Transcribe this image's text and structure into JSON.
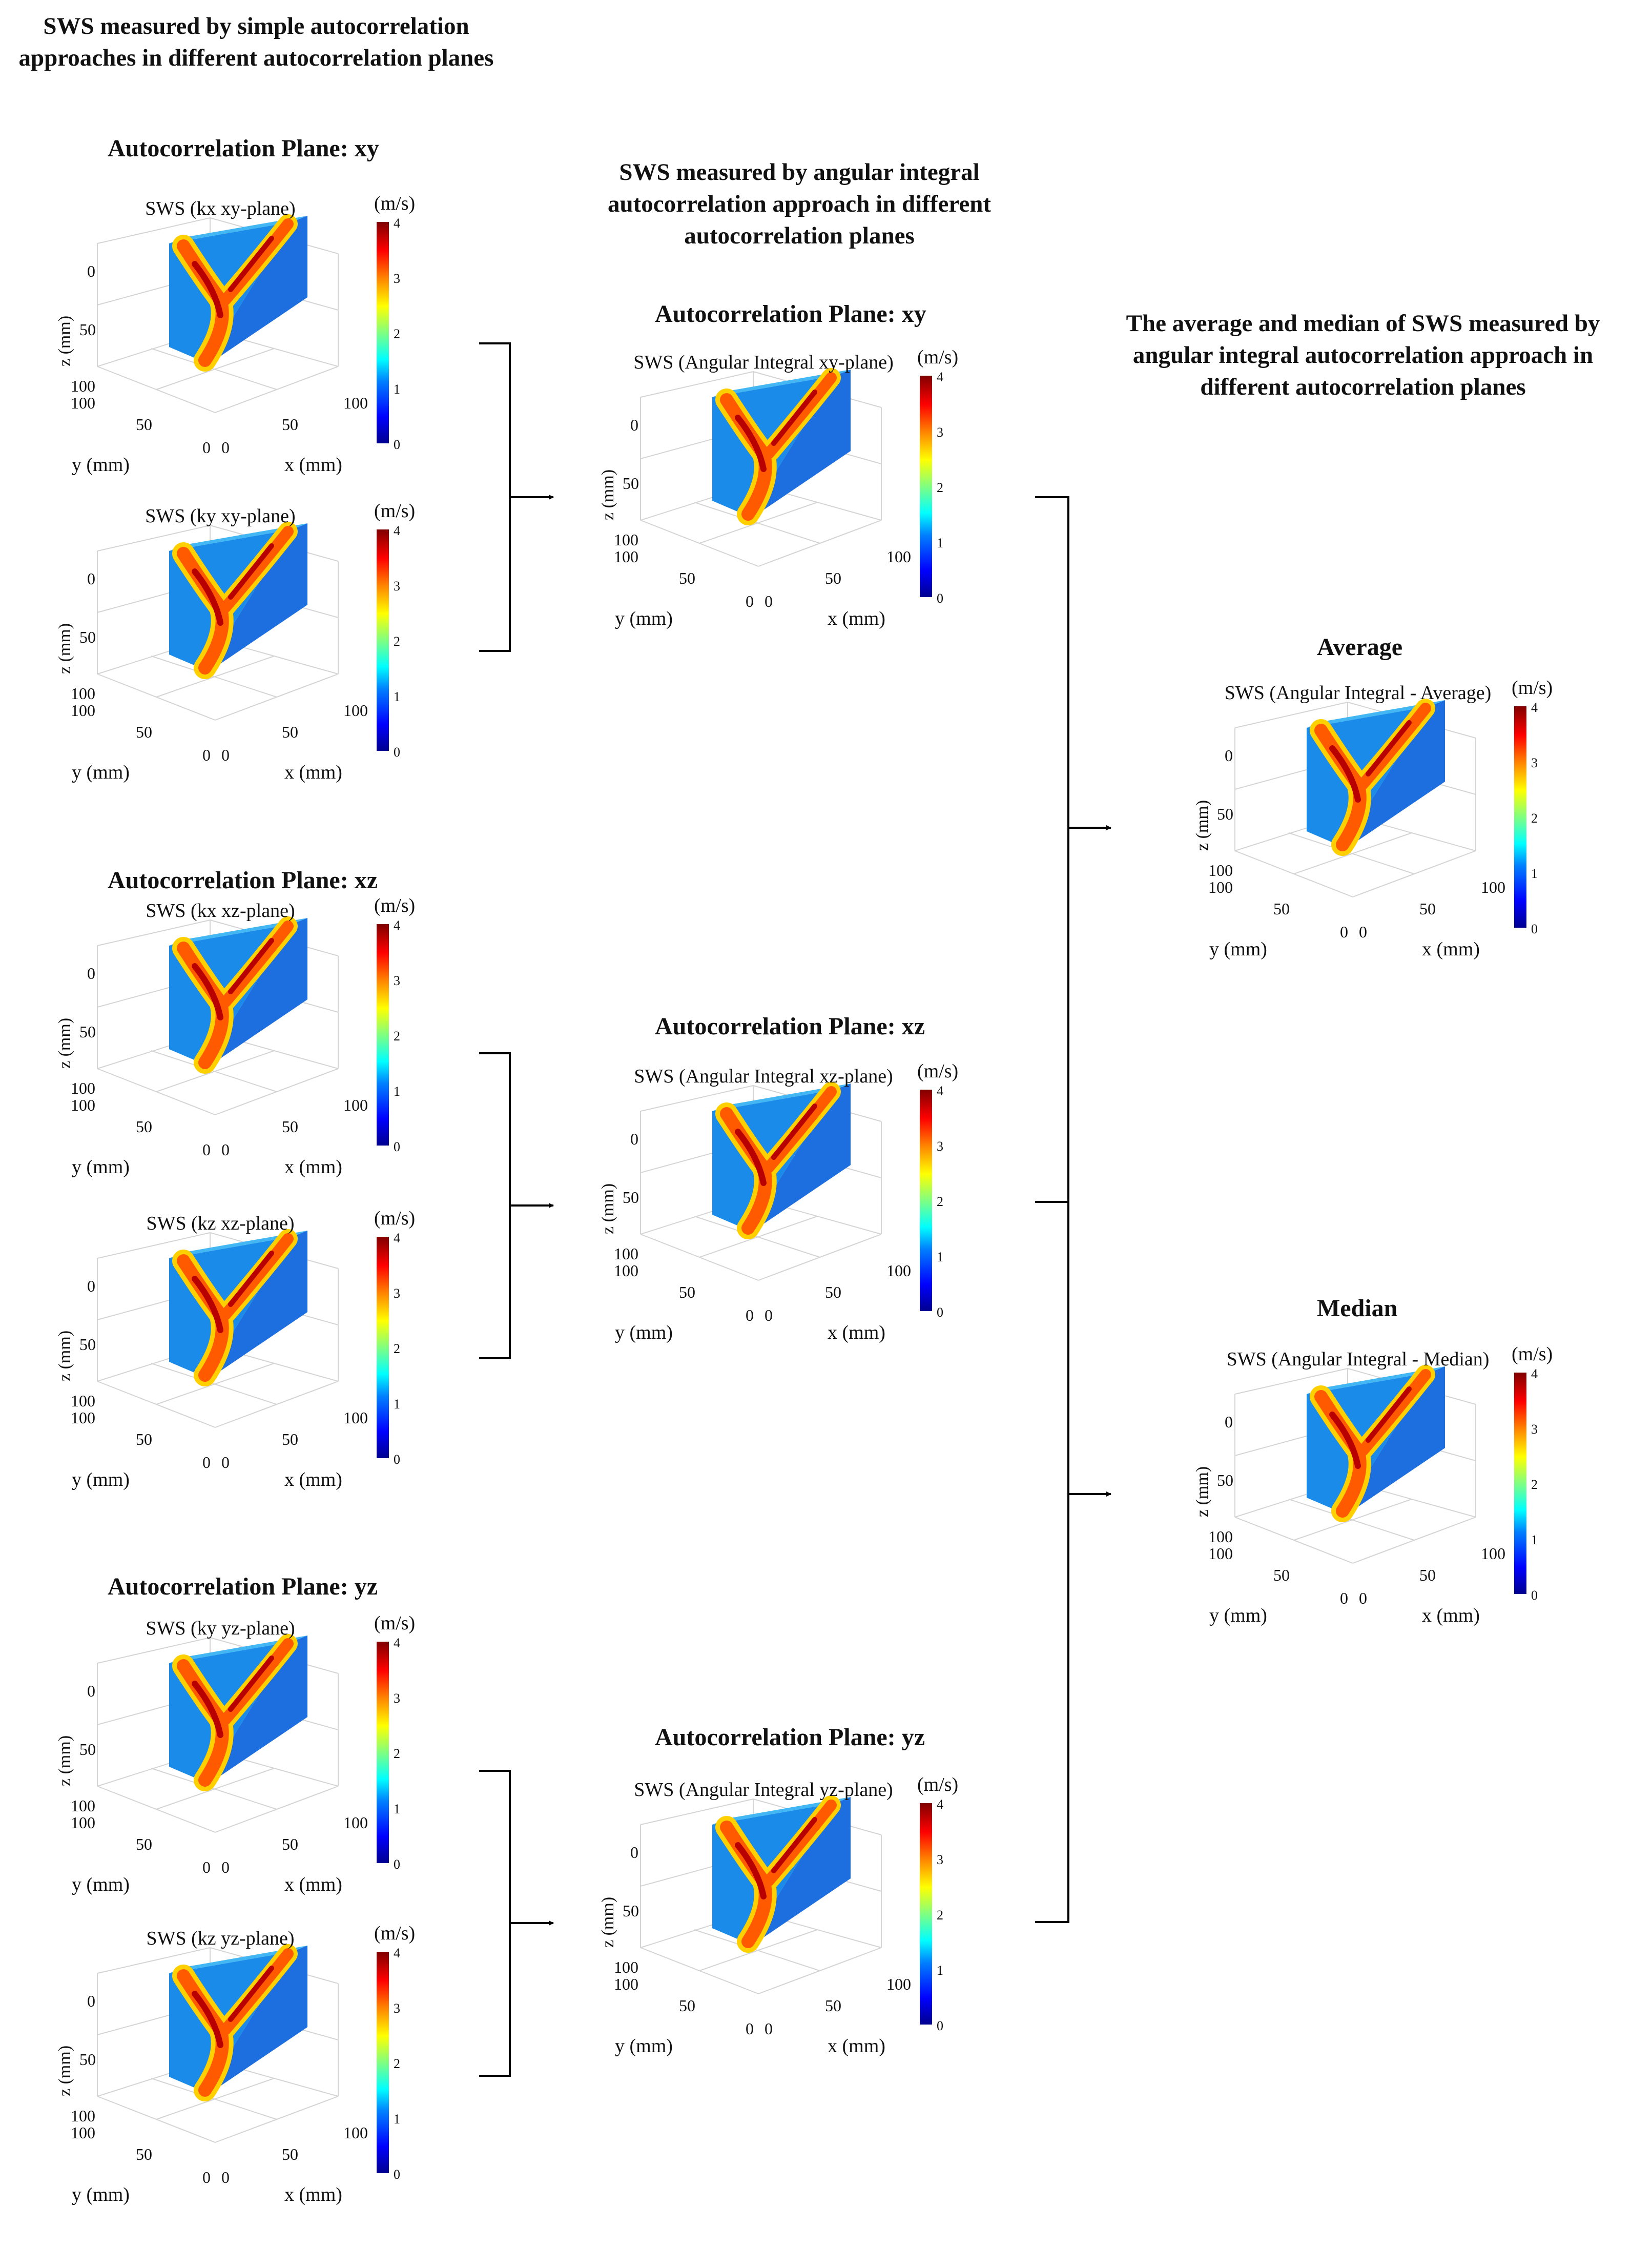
{
  "sections": {
    "left": "SWS measured by simple autocorrelation approaches in different autocorrelation planes",
    "middle": "SWS measured by angular integral autocorrelation approach in different autocorrelation planes",
    "right": "The average and median of SWS measured by angular integral autocorrelation approach in different autocorrelation planes"
  },
  "plane_heads": {
    "left_xy": "Autocorrelation  Plane: xy",
    "left_xz": "Autocorrelation  Plane: xz",
    "left_yz": "Autocorrelation  Plane: yz",
    "mid_xy": "Autocorrelation  Plane: xy",
    "mid_xz": "Autocorrelation  Plane: xz",
    "mid_yz": "Autocorrelation  Plane: yz",
    "average": "Average",
    "median": "Median"
  },
  "axes": {
    "unit": "(m/s)",
    "zlabel": "z (mm)",
    "ylabel": "y (mm)",
    "xlabel": "x (mm)",
    "z_ticks": [
      "0",
      "50",
      "100"
    ],
    "y_ticks": [
      "100",
      "50",
      "0"
    ],
    "x_ticks": [
      "0",
      "50",
      "100"
    ],
    "cbar_ticks": [
      "4",
      "3",
      "2",
      "1",
      "0"
    ]
  },
  "plots": [
    {
      "id": "kx-xy",
      "title": "SWS (kx xy-plane)"
    },
    {
      "id": "ky-xy",
      "title": "SWS (ky xy-plane)"
    },
    {
      "id": "kx-xz",
      "title": "SWS (kx xz-plane)"
    },
    {
      "id": "kz-xz",
      "title": "SWS (kz xz-plane)"
    },
    {
      "id": "ky-yz",
      "title": "SWS (ky yz-plane)"
    },
    {
      "id": "kz-yz",
      "title": "SWS (kz yz-plane)"
    },
    {
      "id": "ai-xy",
      "title": "SWS (Angular Integral xy-plane)"
    },
    {
      "id": "ai-xz",
      "title": "SWS (Angular Integral xz-plane)"
    },
    {
      "id": "ai-yz",
      "title": "SWS (Angular Integral yz-plane)"
    },
    {
      "id": "ai-avg",
      "title": "SWS (Angular Integral - Average)"
    },
    {
      "id": "ai-med",
      "title": "SWS (Angular Integral - Median)"
    }
  ],
  "colormap": "jet",
  "colorbar_range": [
    0,
    4
  ]
}
